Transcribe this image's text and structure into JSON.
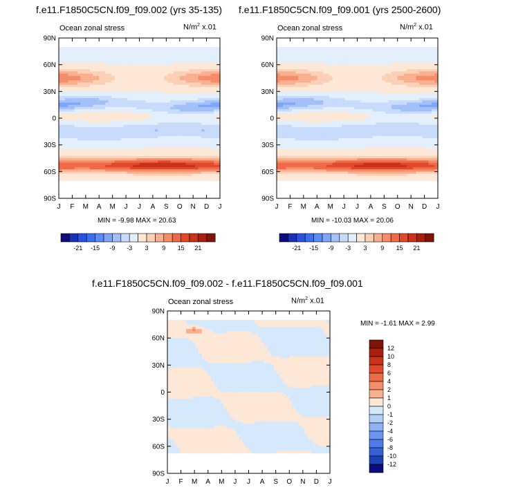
{
  "panels": [
    {
      "title": "f.e11.F1850C5CN.f09_f09.002 (yrs 35-135)",
      "left_label": "Ocean zonal stress",
      "units_prefix": "N/m",
      "units_sup": "2",
      "units_suffix": " x.01",
      "minmax": "MIN = -9.98 MAX = 20.63"
    },
    {
      "title": "f.e11.F1850C5CN.f09_f09.001 (yrs 2500-2600)",
      "left_label": "Ocean zonal stress",
      "units_prefix": "N/m",
      "units_sup": "2",
      "units_suffix": " x.01",
      "minmax": "MIN = -10.03 MAX = 20.06"
    },
    {
      "title": "f.e11.F1850C5CN.f09_f09.002 - f.e11.F1850C5CN.f09_f09.001",
      "left_label": "Ocean zonal stress",
      "units_prefix": "N/m",
      "units_sup": "2",
      "units_suffix": " x.01",
      "minmax": "MIN = -1.61 MAX = 2.99"
    }
  ],
  "chart_data": [
    {
      "type": "heatmap",
      "title": "f.e11.F1850C5CN.f09_f09.002 (yrs 35-135)",
      "x_ticks": [
        "J",
        "F",
        "M",
        "A",
        "M",
        "J",
        "J",
        "A",
        "S",
        "O",
        "N",
        "D",
        "J"
      ],
      "y_ticks": [
        "90N",
        "60N",
        "30N",
        "0",
        "30S",
        "60S",
        "90S"
      ],
      "y_values": [
        90,
        60,
        30,
        0,
        -30,
        -60,
        -90
      ],
      "field": "Ocean zonal stress",
      "units": "N/m2 x.01",
      "min": -9.98,
      "max": 20.63,
      "colorbar_labels": [
        "-21",
        "-15",
        "-9",
        "-3",
        "3",
        "9",
        "15",
        "21"
      ]
    },
    {
      "type": "heatmap",
      "title": "f.e11.F1850C5CN.f09_f09.001 (yrs 2500-2600)",
      "x_ticks": [
        "J",
        "F",
        "M",
        "A",
        "M",
        "J",
        "J",
        "A",
        "S",
        "O",
        "N",
        "D",
        "J"
      ],
      "y_ticks": [
        "90N",
        "60N",
        "30N",
        "0",
        "30S",
        "60S",
        "90S"
      ],
      "y_values": [
        90,
        60,
        30,
        0,
        -30,
        -60,
        -90
      ],
      "field": "Ocean zonal stress",
      "units": "N/m2 x.01",
      "min": -10.03,
      "max": 20.06,
      "colorbar_labels": [
        "-21",
        "-15",
        "-9",
        "-3",
        "3",
        "9",
        "15",
        "21"
      ]
    },
    {
      "type": "heatmap",
      "title": "f.e11.F1850C5CN.f09_f09.002 - f.e11.F1850C5CN.f09_f09.001",
      "x_ticks": [
        "J",
        "F",
        "M",
        "A",
        "M",
        "J",
        "J",
        "A",
        "S",
        "O",
        "N",
        "D",
        "J"
      ],
      "y_ticks": [
        "90N",
        "60N",
        "30N",
        "0",
        "30S",
        "60S",
        "90S"
      ],
      "y_values": [
        90,
        60,
        30,
        0,
        -30,
        -60,
        -90
      ],
      "field": "Ocean zonal stress",
      "units": "N/m2 x.01",
      "min": -1.61,
      "max": 2.99,
      "colorbar_labels": [
        "12",
        "10",
        "8",
        "6",
        "4",
        "2",
        "1",
        "0",
        "-1",
        "-2",
        "-4",
        "-6",
        "-8",
        "-10",
        "-12"
      ]
    }
  ],
  "colors": {
    "scale_18": [
      "#0d0d7a",
      "#1a2fb8",
      "#2a52de",
      "#3c6ff0",
      "#5a8bf2",
      "#7ea6f5",
      "#a3c1f8",
      "#c8dbfb",
      "#e3effd",
      "#fde8d8",
      "#fbd0b6",
      "#f8b090",
      "#f48d68",
      "#ee6a48",
      "#e04a2c",
      "#c9321a",
      "#a8200f",
      "#7e1408"
    ],
    "diff_16": [
      "#7e1408",
      "#a8200f",
      "#c9321a",
      "#e04a2c",
      "#ee6a48",
      "#f48d68",
      "#f8b090",
      "#fde8d8",
      "#d6e8fb",
      "#b3cef7",
      "#8fb2f3",
      "#6c96ef",
      "#4f7be6",
      "#3560d6",
      "#1f3fb5",
      "#0d0d7a"
    ]
  }
}
